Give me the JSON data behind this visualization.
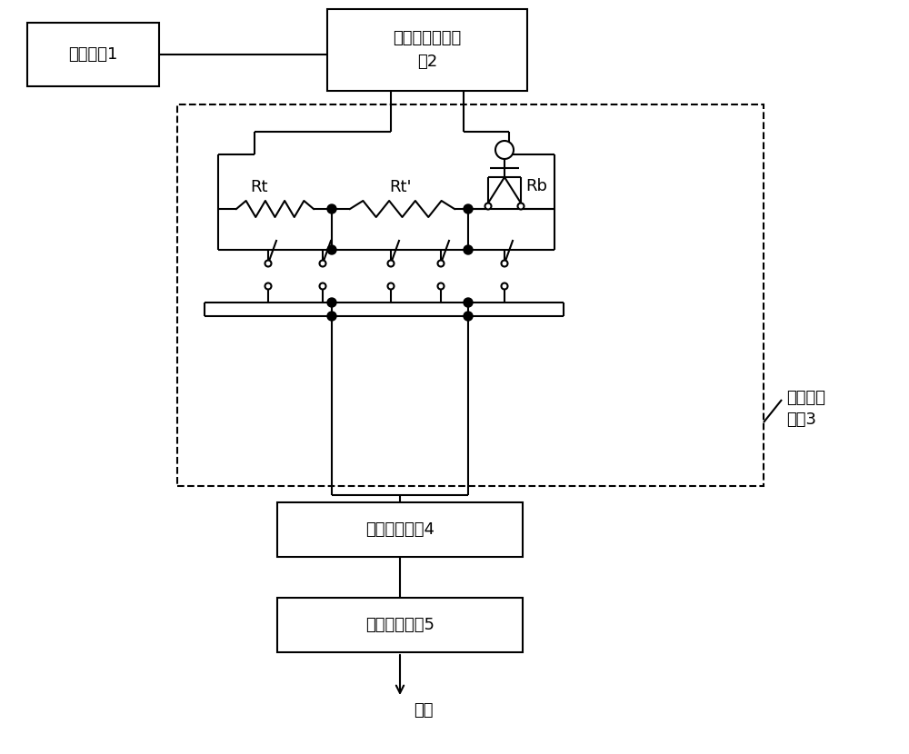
{
  "bg_color": "#ffffff",
  "line_color": "#000000",
  "box1_label": "振荡电路1",
  "box2_label": "反相交流放大电\n路2",
  "box4_label": "电压采样电路4",
  "box5_label": "峰值取样电路5",
  "label_rt": "Rt",
  "label_rtp": "Rt'",
  "label_rb": "Rb",
  "label_circuit3": "电阻选择\n电路3",
  "label_output": "输出",
  "font_size": 13,
  "lw": 1.5
}
